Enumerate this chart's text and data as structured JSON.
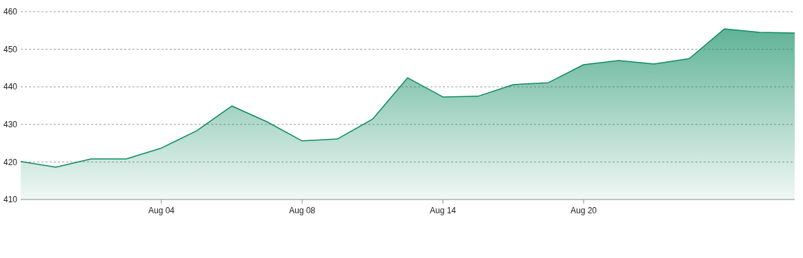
{
  "chart_data": {
    "type": "area",
    "categories": [
      null,
      null,
      null,
      null,
      "Aug 04",
      null,
      null,
      null,
      "Aug 08",
      null,
      null,
      null,
      "Aug 14",
      null,
      null,
      null,
      "Aug 20",
      null,
      null,
      null,
      null,
      null,
      null
    ],
    "series": [
      {
        "color": "#0a8a5f",
        "values": [
          420.1,
          418.6,
          420.8,
          420.8,
          423.7,
          428.3,
          434.9,
          430.7,
          425.6,
          426.1,
          431.4,
          442.4,
          437.3,
          437.5,
          440.6,
          441.1,
          445.9,
          447.0,
          446.1,
          447.5,
          455.4,
          454.5,
          454.3
        ]
      }
    ],
    "ylim": [
      410,
      460
    ],
    "yticks": [
      410,
      420,
      430,
      440,
      450,
      460
    ],
    "grid": "y"
  }
}
